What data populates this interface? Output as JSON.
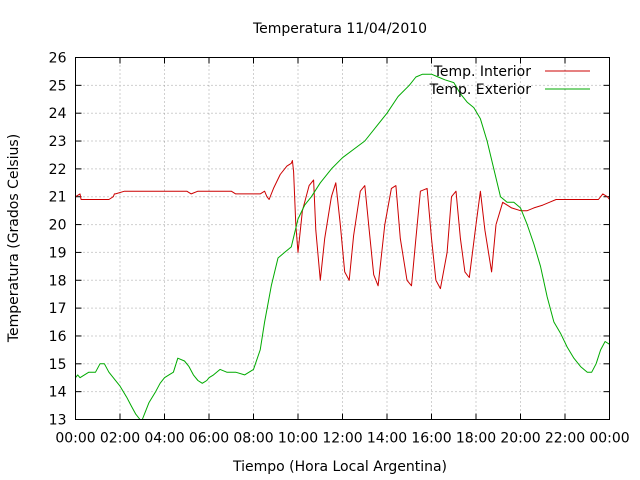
{
  "chart_data": {
    "type": "line",
    "title": "Temperatura 11/04/2010",
    "xlabel": "Tiempo (Hora Local Argentina)",
    "ylabel": "Temperatura (Grados Celsius)",
    "xlim": [
      0,
      24
    ],
    "ylim": [
      13,
      26
    ],
    "grid": true,
    "legend_position": "top-right",
    "x_tick_labels": [
      "00:00",
      "02:00",
      "04:00",
      "06:00",
      "08:00",
      "10:00",
      "12:00",
      "14:00",
      "16:00",
      "18:00",
      "20:00",
      "22:00",
      "00:00"
    ],
    "y_tick_labels": [
      "13",
      "14",
      "15",
      "16",
      "17",
      "18",
      "19",
      "20",
      "21",
      "22",
      "23",
      "24",
      "25",
      "26"
    ],
    "series": [
      {
        "name": "Temp. Interior",
        "color": "#cc0000",
        "x": [
          0,
          0.2,
          0.25,
          0.3,
          1.5,
          1.7,
          1.75,
          1.8,
          2.2,
          3.0,
          5.0,
          5.2,
          5.5,
          7.0,
          7.2,
          7.5,
          8.3,
          8.5,
          8.6,
          8.7,
          8.9,
          9.2,
          9.5,
          9.7,
          9.75,
          9.8,
          9.9,
          10.0,
          10.2,
          10.5,
          10.7,
          10.8,
          11.0,
          11.2,
          11.5,
          11.7,
          11.9,
          12.1,
          12.3,
          12.5,
          12.8,
          13.0,
          13.2,
          13.4,
          13.6,
          13.9,
          14.2,
          14.4,
          14.6,
          14.9,
          15.1,
          15.3,
          15.5,
          15.8,
          16.0,
          16.2,
          16.4,
          16.7,
          16.9,
          17.1,
          17.3,
          17.5,
          17.7,
          18.0,
          18.2,
          18.4,
          18.7,
          18.9,
          19.2,
          19.6,
          20.0,
          20.3,
          20.6,
          21.0,
          21.3,
          21.6,
          22.0,
          23.0,
          23.5,
          23.7,
          23.9,
          24.0
        ],
        "y": [
          21.0,
          21.1,
          20.9,
          20.9,
          20.9,
          21.0,
          21.1,
          21.1,
          21.2,
          21.2,
          21.2,
          21.1,
          21.2,
          21.2,
          21.1,
          21.1,
          21.1,
          21.2,
          21.0,
          20.9,
          21.3,
          21.8,
          22.1,
          22.2,
          22.3,
          21.9,
          20.0,
          19.0,
          20.5,
          21.4,
          21.6,
          19.8,
          18.0,
          19.5,
          21.0,
          21.5,
          20.0,
          18.3,
          18.0,
          19.6,
          21.2,
          21.4,
          19.8,
          18.2,
          17.8,
          20.0,
          21.3,
          21.4,
          19.5,
          18.0,
          17.8,
          19.5,
          21.2,
          21.3,
          19.5,
          18.0,
          17.7,
          19.0,
          21.0,
          21.2,
          19.5,
          18.3,
          18.1,
          20.0,
          21.2,
          19.8,
          18.3,
          20.0,
          20.8,
          20.6,
          20.5,
          20.5,
          20.6,
          20.7,
          20.8,
          20.9,
          20.9,
          20.9,
          20.9,
          21.1,
          21.0,
          20.9
        ]
      },
      {
        "name": "Temp. Exterior",
        "color": "#00aa00",
        "x": [
          0,
          0.1,
          0.2,
          0.4,
          0.6,
          0.9,
          1.1,
          1.3,
          1.5,
          1.7,
          2.0,
          2.3,
          2.5,
          2.7,
          2.9,
          3.0,
          3.1,
          3.3,
          3.6,
          3.8,
          4.0,
          4.2,
          4.4,
          4.6,
          4.9,
          5.1,
          5.3,
          5.5,
          5.7,
          5.9,
          6.0,
          6.2,
          6.5,
          6.8,
          7.2,
          7.6,
          8.0,
          8.3,
          8.5,
          8.8,
          9.1,
          9.4,
          9.7,
          10.0,
          10.3,
          10.6,
          11.0,
          11.5,
          12.0,
          12.5,
          13.0,
          13.5,
          14.0,
          14.5,
          15.0,
          15.3,
          15.6,
          16.0,
          16.3,
          16.6,
          17.0,
          17.3,
          17.6,
          17.9,
          18.2,
          18.5,
          18.8,
          19.1,
          19.4,
          19.7,
          20.0,
          20.3,
          20.6,
          20.9,
          21.2,
          21.5,
          21.8,
          22.1,
          22.4,
          22.7,
          23.0,
          23.2,
          23.4,
          23.6,
          23.8,
          24.0
        ],
        "y": [
          14.5,
          14.6,
          14.5,
          14.6,
          14.7,
          14.7,
          15.0,
          15.0,
          14.7,
          14.5,
          14.2,
          13.8,
          13.5,
          13.2,
          13.0,
          13.0,
          13.2,
          13.6,
          14.0,
          14.3,
          14.5,
          14.6,
          14.7,
          15.2,
          15.1,
          14.9,
          14.6,
          14.4,
          14.3,
          14.4,
          14.5,
          14.6,
          14.8,
          14.7,
          14.7,
          14.6,
          14.8,
          15.5,
          16.5,
          17.8,
          18.8,
          19.0,
          19.2,
          20.2,
          20.7,
          21.0,
          21.5,
          22.0,
          22.4,
          22.7,
          23.0,
          23.5,
          24.0,
          24.6,
          25.0,
          25.3,
          25.4,
          25.4,
          25.3,
          25.2,
          25.1,
          24.7,
          24.4,
          24.2,
          23.8,
          23.0,
          22.0,
          21.0,
          20.8,
          20.8,
          20.6,
          20.0,
          19.3,
          18.5,
          17.4,
          16.5,
          16.1,
          15.6,
          15.2,
          14.9,
          14.7,
          14.7,
          15.0,
          15.5,
          15.8,
          15.7
        ]
      }
    ]
  }
}
